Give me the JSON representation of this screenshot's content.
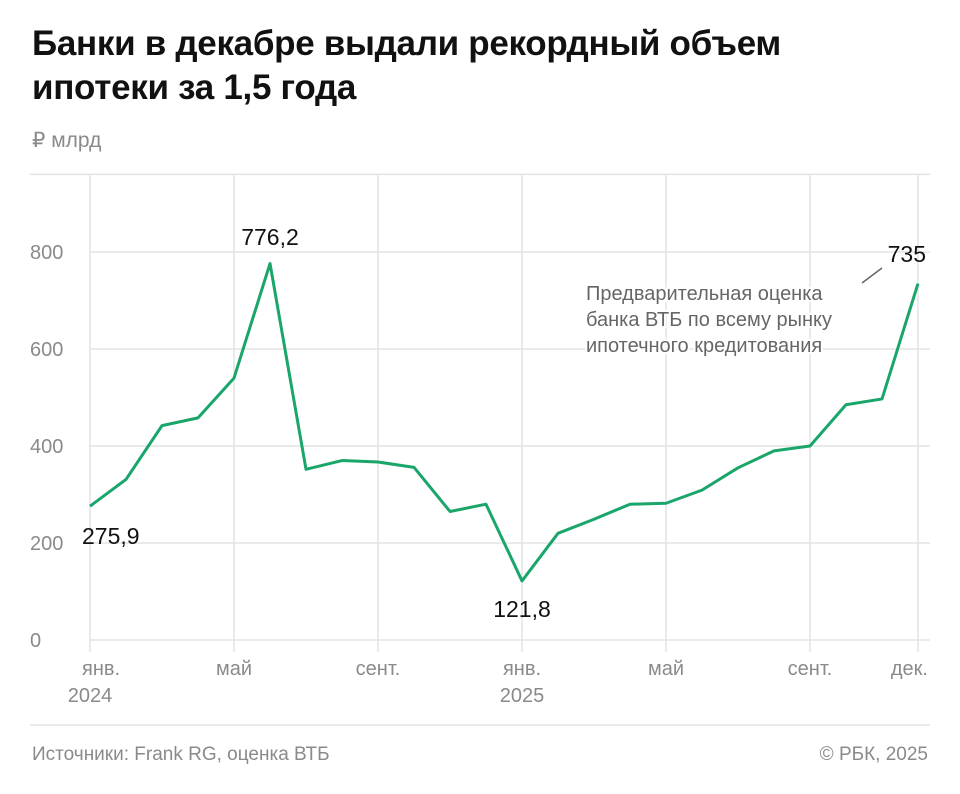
{
  "title": "Банки в декабре выдали рекордный объем ипотеки за 1,5 года",
  "unit_label": "₽ млрд",
  "footer": {
    "source": "Источники: Frank RG, оценка ВТБ",
    "copyright": "© РБК, 2025"
  },
  "colors": {
    "line": "#1aa66b",
    "grid": "#e3e3e3",
    "text": "#111111",
    "muted": "#8a8a8a"
  },
  "chart_data": {
    "type": "line",
    "title": "Банки в декабре выдали рекордный объем ипотеки за 1,5 года",
    "ylabel": "₽ млрд",
    "ylim": [
      0,
      960
    ],
    "yticks": [
      0,
      200,
      400,
      600,
      800
    ],
    "grid": true,
    "x": [
      "2024-01",
      "2024-02",
      "2024-03",
      "2024-04",
      "2024-05",
      "2024-06",
      "2024-07",
      "2024-08",
      "2024-09",
      "2024-10",
      "2024-11",
      "2024-12",
      "2025-01",
      "2025-02",
      "2025-03",
      "2025-04",
      "2025-05",
      "2025-06",
      "2025-07",
      "2025-08",
      "2025-09",
      "2025-10",
      "2025-11",
      "2025-12"
    ],
    "values": [
      275.9,
      331,
      442,
      458,
      540,
      776.2,
      352,
      370,
      367,
      356,
      265,
      280,
      121.8,
      220,
      249,
      280,
      282,
      309,
      355,
      390,
      400,
      485,
      497,
      735
    ],
    "xticks": [
      {
        "index": 0,
        "label": "янв.",
        "year": "2024"
      },
      {
        "index": 4,
        "label": "май",
        "year": ""
      },
      {
        "index": 8,
        "label": "сент.",
        "year": ""
      },
      {
        "index": 12,
        "label": "янв.",
        "year": "2025"
      },
      {
        "index": 16,
        "label": "май",
        "year": ""
      },
      {
        "index": 20,
        "label": "сент.",
        "year": ""
      },
      {
        "index": 23,
        "label": "дек.",
        "year": ""
      }
    ],
    "data_labels": [
      {
        "index": 0,
        "text": "275,9"
      },
      {
        "index": 5,
        "text": "776,2"
      },
      {
        "index": 12,
        "text": "121,8"
      },
      {
        "index": 23,
        "text": "735"
      }
    ],
    "annotation": {
      "index": 23,
      "lines": [
        "Предварительная оценка",
        "банка ВТБ по всему рынку",
        "ипотечного кредитования"
      ]
    }
  }
}
